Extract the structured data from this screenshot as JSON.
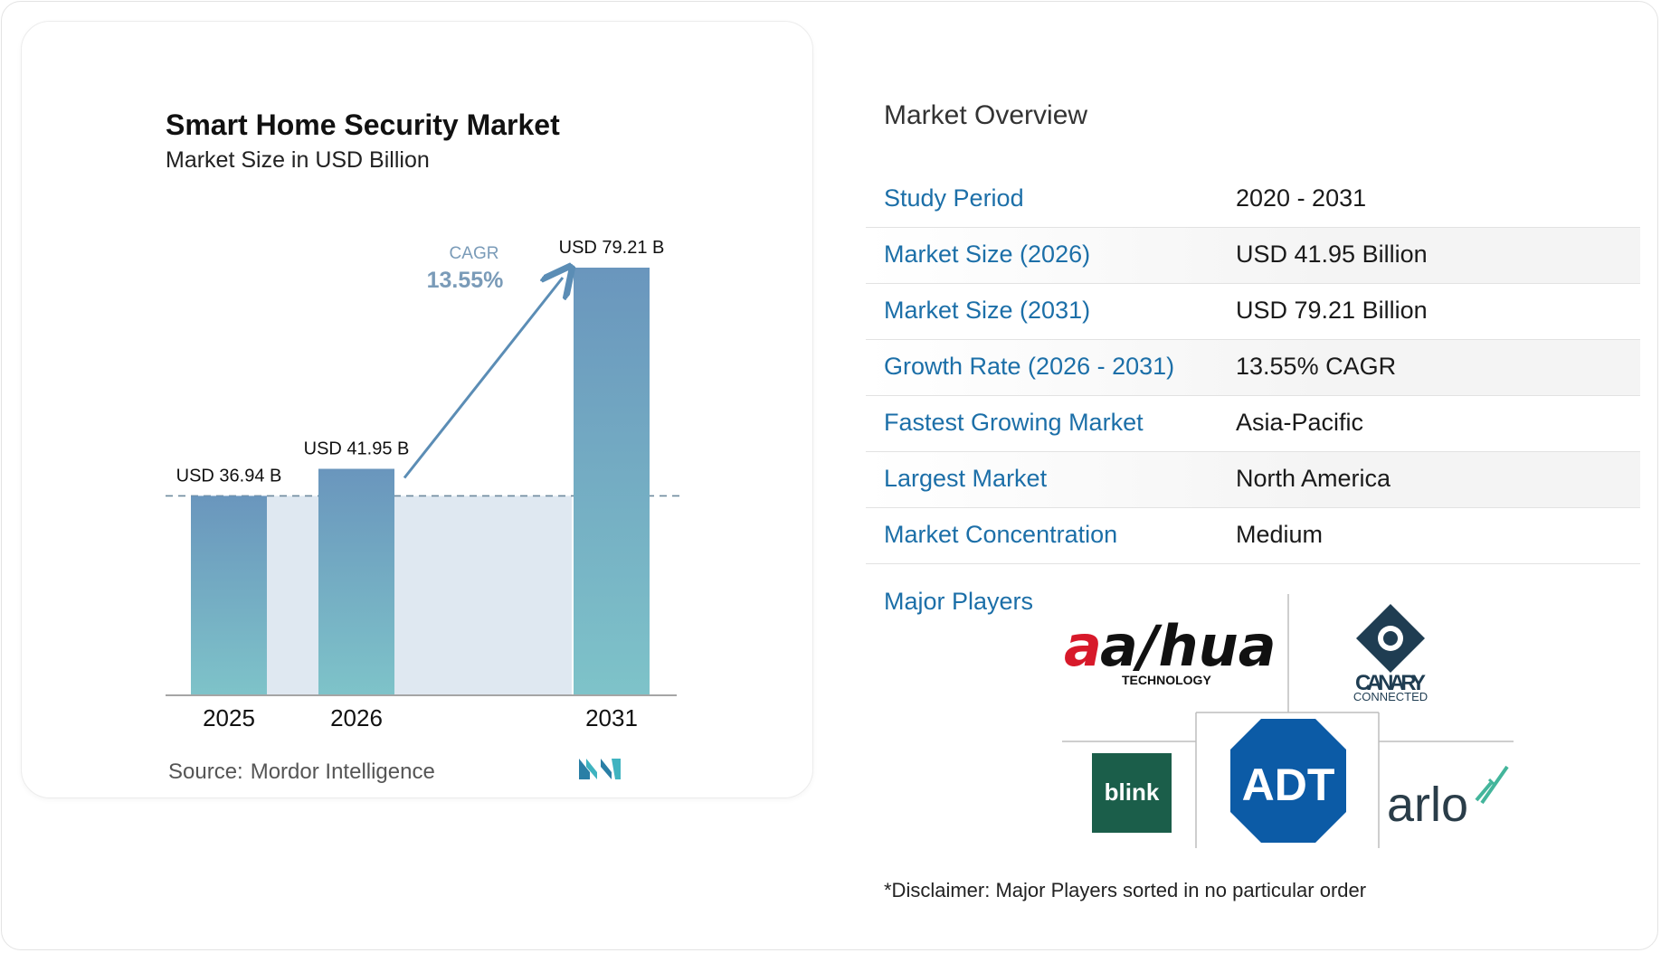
{
  "chart": {
    "title": "Smart Home Security Market",
    "subtitle": "Market Size in USD Billion",
    "source_label": "Source:",
    "source_name": "Mordor Intelligence",
    "cagr_label": "CAGR",
    "cagr_value": "13.55%",
    "colors": {
      "bar_top": "#6a96bd",
      "bar_bottom": "#7ec3c9",
      "band": "#dfe8f1",
      "arrow": "#5b8db5"
    }
  },
  "chart_data": {
    "type": "bar",
    "title": "Smart Home Security Market",
    "subtitle": "Market Size in USD Billion",
    "categories": [
      "2025",
      "2026",
      "2031"
    ],
    "values": [
      36.94,
      41.95,
      79.21
    ],
    "data_labels": [
      "USD 36.94 B",
      "USD 41.95 B",
      "USD 79.21 B"
    ],
    "annotation": {
      "label": "CAGR",
      "value": "13.55%"
    },
    "grid": false
  },
  "overview": {
    "title": "Market Overview",
    "rows": [
      {
        "label": "Study Period",
        "value": "2020 - 2031"
      },
      {
        "label": "Market Size (2026)",
        "value": "USD 41.95 Billion"
      },
      {
        "label": "Market Size (2031)",
        "value": "USD 79.21 Billion"
      },
      {
        "label": "Growth Rate (2026 - 2031)",
        "value": "13.55% CAGR"
      },
      {
        "label": "Fastest Growing Market",
        "value": "Asia-Pacific"
      },
      {
        "label": "Largest Market",
        "value": "North America"
      },
      {
        "label": "Market Concentration",
        "value": "Medium"
      }
    ]
  },
  "players": {
    "label": "Major Players",
    "logos": [
      {
        "name": "dahua",
        "text": "a/hua",
        "sub": "TECHNOLOGY"
      },
      {
        "name": "canary",
        "text": "CANARY",
        "sub": "CONNECTED"
      },
      {
        "name": "blink",
        "text": "blink"
      },
      {
        "name": "adt",
        "text": "ADT"
      },
      {
        "name": "arlo",
        "text": "arlo"
      }
    ],
    "disclaimer": "*Disclaimer: Major Players sorted in no particular order"
  }
}
